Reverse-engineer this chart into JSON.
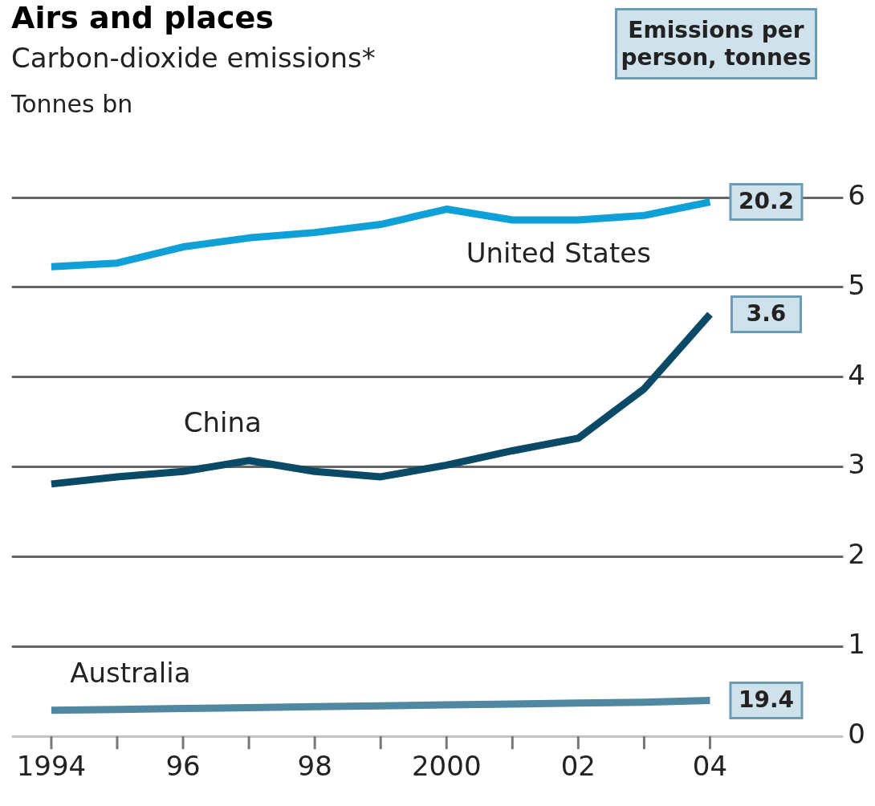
{
  "chart_data": {
    "type": "line",
    "title": "Airs and places",
    "subtitle": "Carbon-dioxide emissions*",
    "ylabel": "Tonnes bn",
    "x": [
      1994,
      1995,
      1996,
      1997,
      1998,
      1999,
      2000,
      2001,
      2002,
      2003,
      2004
    ],
    "series": [
      {
        "name": "United States",
        "color": "#0fa0d8",
        "values": [
          5.23,
          5.27,
          5.45,
          5.55,
          5.61,
          5.7,
          5.87,
          5.75,
          5.75,
          5.8,
          5.95
        ]
      },
      {
        "name": "China",
        "color": "#0b4a66",
        "values": [
          2.81,
          2.89,
          2.95,
          3.07,
          2.95,
          2.89,
          3.02,
          3.18,
          3.32,
          3.87,
          4.7
        ]
      },
      {
        "name": "Australia",
        "color": "#4f88a0",
        "values": [
          0.29,
          0.3,
          0.31,
          0.32,
          0.33,
          0.34,
          0.35,
          0.36,
          0.37,
          0.38,
          0.4
        ]
      }
    ],
    "xlim": [
      1993.4,
      2005.9
    ],
    "xticks": [
      {
        "value": 1994,
        "label": "1994"
      },
      {
        "value": 1995,
        "label": null
      },
      {
        "value": 1996,
        "label": "96"
      },
      {
        "value": 1997,
        "label": null
      },
      {
        "value": 1998,
        "label": "98"
      },
      {
        "value": 1999,
        "label": null
      },
      {
        "value": 2000,
        "label": "2000"
      },
      {
        "value": 2001,
        "label": null
      },
      {
        "value": 2002,
        "label": "02"
      },
      {
        "value": 2003,
        "label": null
      },
      {
        "value": 2004,
        "label": "04"
      }
    ],
    "ylim": [
      0,
      6
    ],
    "yticks": [
      0,
      1,
      2,
      3,
      4,
      5,
      6
    ],
    "grid": "y",
    "legend": false,
    "marker": "none",
    "line_style": "solid",
    "annotations": [
      "Emissions per person, tonnes",
      "20.2",
      "3.6",
      "19.4"
    ]
  }
}
